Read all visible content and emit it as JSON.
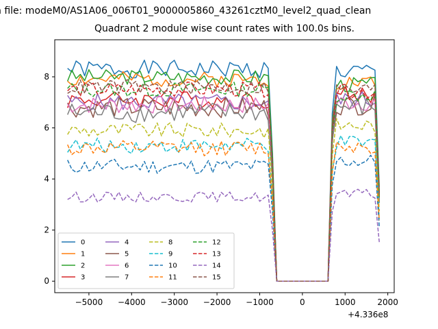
{
  "figure": {
    "suptitle": "n file: modeM0/AS1A06_006T01_9000005860_43261cztM0_level2_quad_clean",
    "x_offset_label": "+4.336e8"
  },
  "chart_data": {
    "type": "line",
    "title": "Quadrant 2 module wise count rates with 100.0s bins.",
    "xlabel": "",
    "ylabel": "",
    "xlim": [
      -5800,
      2150
    ],
    "ylim": [
      -0.45,
      9.45
    ],
    "xticks": [
      -5000,
      -4000,
      -3000,
      -2000,
      -1000,
      0,
      1000,
      2000
    ],
    "xtick_labels": [
      "−5000",
      "−4000",
      "−3000",
      "−2000",
      "−1000",
      "0",
      "1000",
      "2000"
    ],
    "yticks": [
      0,
      2,
      4,
      6,
      8
    ],
    "ytick_labels": [
      "0",
      "2",
      "4",
      "6",
      "8"
    ],
    "grid": false,
    "legend": {
      "placement": "lower-left",
      "columns": 4
    },
    "x_segments": [
      [
        -5500,
        -800
      ],
      [
        800,
        1800
      ]
    ],
    "gap_x": [
      -600,
      600
    ],
    "gap_value": 0,
    "series": [
      {
        "name": "0",
        "color": "#1f77b4",
        "dash": "solid",
        "mean": 8.3,
        "amp": 0.35,
        "right_mean": 8.2
      },
      {
        "name": "1",
        "color": "#ff7f0e",
        "dash": "solid",
        "mean": 7.9,
        "amp": 0.3,
        "right_mean": 7.8
      },
      {
        "name": "2",
        "color": "#2ca02c",
        "dash": "solid",
        "mean": 8.0,
        "amp": 0.3,
        "right_mean": 7.7
      },
      {
        "name": "3",
        "color": "#d62728",
        "dash": "solid",
        "mean": 7.1,
        "amp": 0.35,
        "right_mean": 7.3
      },
      {
        "name": "4",
        "color": "#9467bd",
        "dash": "solid",
        "mean": 7.0,
        "amp": 0.35,
        "right_mean": 7.1
      },
      {
        "name": "5",
        "color": "#8c564b",
        "dash": "solid",
        "mean": 6.8,
        "amp": 0.4,
        "right_mean": 6.9
      },
      {
        "name": "6",
        "color": "#e377c2",
        "dash": "solid",
        "mean": 6.9,
        "amp": 0.35,
        "right_mean": 7.0
      },
      {
        "name": "7",
        "color": "#7f7f7f",
        "dash": "solid",
        "mean": 6.6,
        "amp": 0.4,
        "right_mean": 6.8
      },
      {
        "name": "8",
        "color": "#bcbd22",
        "dash": "dashed",
        "mean": 5.9,
        "amp": 0.3,
        "right_mean": 6.1
      },
      {
        "name": "9",
        "color": "#17becf",
        "dash": "dashed",
        "mean": 5.3,
        "amp": 0.3,
        "right_mean": 5.4
      },
      {
        "name": "10",
        "color": "#1f77b4",
        "dash": "dashed",
        "mean": 4.5,
        "amp": 0.3,
        "right_mean": 4.7
      },
      {
        "name": "11",
        "color": "#ff7f0e",
        "dash": "dashed",
        "mean": 5.2,
        "amp": 0.3,
        "right_mean": 5.3
      },
      {
        "name": "12",
        "color": "#2ca02c",
        "dash": "dashed",
        "mean": 7.5,
        "amp": 0.3,
        "right_mean": 7.3
      },
      {
        "name": "13",
        "color": "#d62728",
        "dash": "dashed",
        "mean": 7.5,
        "amp": 0.3,
        "right_mean": 7.4
      },
      {
        "name": "14",
        "color": "#9467bd",
        "dash": "dashed",
        "mean": 3.3,
        "amp": 0.2,
        "right_mean": 3.4
      },
      {
        "name": "15",
        "color": "#8c564b",
        "dash": "dashed",
        "mean": 7.6,
        "amp": 0.3,
        "right_mean": 7.5
      }
    ]
  }
}
